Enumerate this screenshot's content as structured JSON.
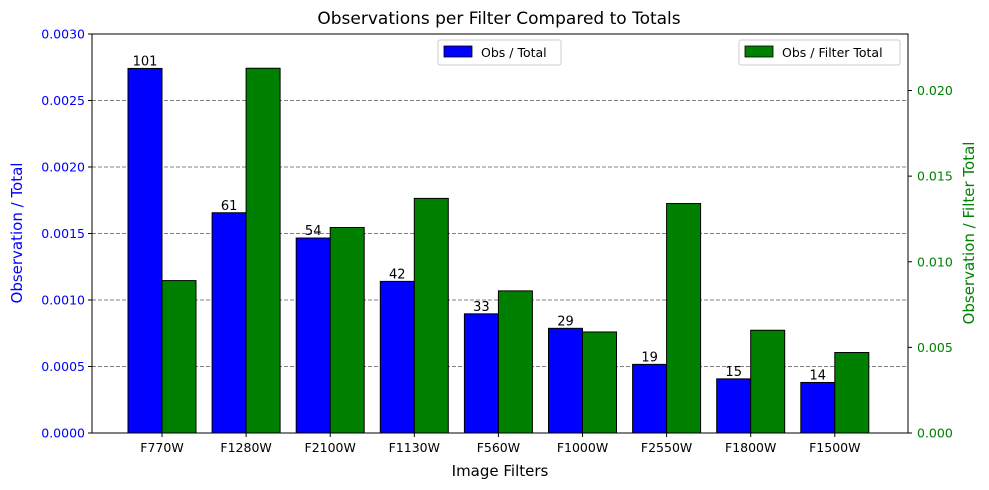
{
  "chart_data": {
    "type": "bar",
    "title": "Observations per Filter Compared to Totals",
    "xlabel": "Image Filters",
    "ylabel_left": "Observation / Total",
    "ylabel_right": "Observation / Filter Total",
    "categories": [
      "F770W",
      "F1280W",
      "F2100W",
      "F1130W",
      "F560W",
      "F1000W",
      "F2550W",
      "F1800W",
      "F1500W"
    ],
    "series": [
      {
        "name": "Obs / Total",
        "axis": "left",
        "color": "#0000ff",
        "values": [
          0.002741,
          0.001656,
          0.001466,
          0.00114,
          0.000896,
          0.000787,
          0.000516,
          0.000407,
          0.00038
        ],
        "labels": [
          "101",
          "61",
          "54",
          "42",
          "33",
          "29",
          "19",
          "15",
          "14"
        ]
      },
      {
        "name": "Obs / Filter Total",
        "axis": "right",
        "color": "#008000",
        "values": [
          0.0089,
          0.0213,
          0.012,
          0.0137,
          0.0083,
          0.0059,
          0.0134,
          0.006,
          0.0047
        ]
      }
    ],
    "ylim_left": [
      0,
      0.003
    ],
    "yticks_left": [
      "0.0000",
      "0.0005",
      "0.0010",
      "0.0015",
      "0.0020",
      "0.0025",
      "0.0030"
    ],
    "ylim_right": [
      0,
      0.0233
    ],
    "yticks_right": [
      "0.000",
      "0.005",
      "0.010",
      "0.015",
      "0.020"
    ],
    "grid": "y-dashed",
    "legend_left_placement": "top-center",
    "legend_right_placement": "top-right"
  }
}
